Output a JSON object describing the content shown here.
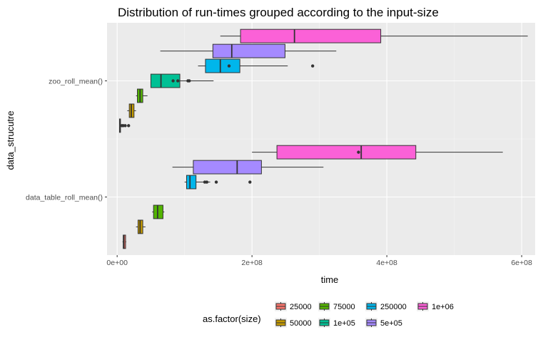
{
  "chart_data": {
    "type": "boxplot",
    "title": "Distribution of run-times grouped according to the input-size",
    "xlabel": "time",
    "ylabel": "data_strucutre",
    "xlim": [
      -15000000,
      620000000
    ],
    "x_ticks": [
      {
        "value": 0,
        "label": "0e+00"
      },
      {
        "value": 200000000,
        "label": "2e+08"
      },
      {
        "value": 400000000,
        "label": "4e+08"
      },
      {
        "value": 600000000,
        "label": "6e+08"
      }
    ],
    "categories": [
      "data_table_roll_mean()",
      "zoo_roll_mean()"
    ],
    "grid": true,
    "legend": {
      "title": "as.factor(size)",
      "position": "bottom",
      "entries": [
        "25000",
        "50000",
        "75000",
        "1e+05",
        "250000",
        "5e+05",
        "1e+06"
      ]
    },
    "series": [
      {
        "name": "25000",
        "color": "#F8766D",
        "boxes": [
          {
            "category": "data_table_roll_mean()",
            "whisker_low": 8000000,
            "q1": 9000000,
            "median": 10000000,
            "q3": 12500000,
            "whisker_high": 13500000,
            "outliers": []
          },
          {
            "category": "zoo_roll_mean()",
            "whisker_low": 3000000,
            "q1": 3500000,
            "median": 4000000,
            "q3": 5000000,
            "whisker_high": 6000000,
            "outliers": [
              7000000,
              9000000,
              12000000,
              17000000
            ]
          }
        ]
      },
      {
        "name": "50000",
        "color": "#C49A00",
        "boxes": [
          {
            "category": "data_table_roll_mean()",
            "whisker_low": 28000000,
            "q1": 31000000,
            "median": 34000000,
            "q3": 38000000,
            "whisker_high": 42000000,
            "outliers": []
          },
          {
            "category": "zoo_roll_mean()",
            "whisker_low": 15000000,
            "q1": 18000000,
            "median": 21000000,
            "q3": 25000000,
            "whisker_high": 28000000,
            "outliers": []
          }
        ]
      },
      {
        "name": "75000",
        "color": "#53B400",
        "boxes": [
          {
            "category": "data_table_roll_mean()",
            "whisker_low": 52000000,
            "q1": 54000000,
            "median": 60000000,
            "q3": 68000000,
            "whisker_high": 70000000,
            "outliers": []
          },
          {
            "category": "zoo_roll_mean()",
            "whisker_low": 28000000,
            "q1": 30000000,
            "median": 34000000,
            "q3": 38000000,
            "whisker_high": 45000000,
            "outliers": []
          }
        ]
      },
      {
        "name": "1e+05",
        "color": "#00C094",
        "boxes": [
          {
            "category": "data_table_roll_mean()",
            "whisker_low": null,
            "q1": null,
            "median": null,
            "q3": null,
            "whisker_high": null,
            "outliers": []
          },
          {
            "category": "zoo_roll_mean()",
            "whisker_low": 50000000,
            "q1": 50000000,
            "median": 65000000,
            "q3": 93000000,
            "whisker_high": 143000000,
            "outliers": [
              83000000,
              90000000,
              105000000,
              107000000
            ]
          }
        ]
      },
      {
        "name": "250000",
        "color": "#00B6EB",
        "boxes": [
          {
            "category": "data_table_roll_mean()",
            "whisker_low": 100000000,
            "q1": 103000000,
            "median": 108000000,
            "q3": 117000000,
            "whisker_high": 138000000,
            "outliers": [
              130000000,
              133000000,
              147000000,
              197000000
            ]
          },
          {
            "category": "zoo_roll_mean()",
            "whisker_low": 120000000,
            "q1": 131000000,
            "median": 153000000,
            "q3": 182000000,
            "whisker_high": 253000000,
            "outliers": [
              166000000,
              290000000
            ]
          }
        ]
      },
      {
        "name": "5e+05",
        "color": "#A58AFF",
        "boxes": [
          {
            "category": "data_table_roll_mean()",
            "whisker_low": 82000000,
            "q1": 113000000,
            "median": 178000000,
            "q3": 214000000,
            "whisker_high": 306000000,
            "outliers": []
          },
          {
            "category": "zoo_roll_mean()",
            "whisker_low": 64000000,
            "q1": 142000000,
            "median": 170000000,
            "q3": 249000000,
            "whisker_high": 325000000,
            "outliers": []
          }
        ]
      },
      {
        "name": "1e+06",
        "color": "#FB61D7",
        "boxes": [
          {
            "category": "data_table_roll_mean()",
            "whisker_low": 200000000,
            "q1": 237000000,
            "median": 362000000,
            "q3": 443000000,
            "whisker_high": 572000000,
            "outliers": [
              358000000
            ]
          },
          {
            "category": "zoo_roll_mean()",
            "whisker_low": 153000000,
            "q1": 183000000,
            "median": 263000000,
            "q3": 391000000,
            "whisker_high": 609000000,
            "outliers": []
          }
        ]
      }
    ]
  }
}
